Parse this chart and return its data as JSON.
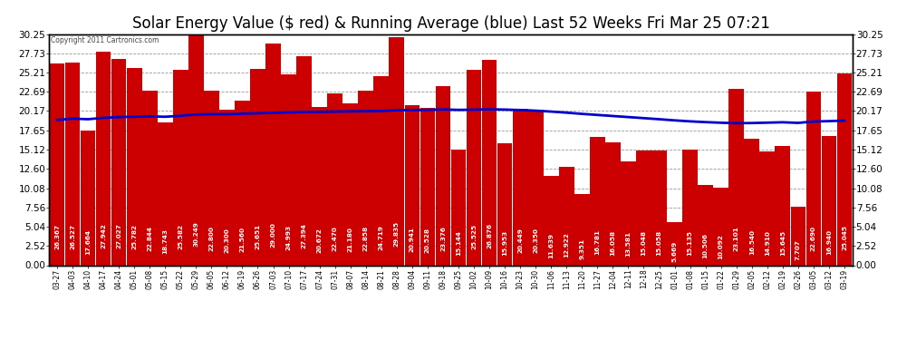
{
  "title": "Solar Energy Value ($ red) & Running Average (blue) Last 52 Weeks Fri Mar 25 07:21",
  "copyright": "Copyright 2011 Cartronics.com",
  "bar_color": "#cc0000",
  "line_color": "#0000cc",
  "background_color": "#ffffff",
  "plot_bg_color": "#ffffff",
  "grid_color": "#999999",
  "categories": [
    "03-27",
    "04-03",
    "04-10",
    "04-17",
    "04-24",
    "05-01",
    "05-08",
    "05-15",
    "05-22",
    "05-29",
    "06-05",
    "06-12",
    "06-19",
    "06-26",
    "07-03",
    "07-10",
    "07-17",
    "07-24",
    "07-31",
    "08-07",
    "08-14",
    "08-21",
    "08-28",
    "09-04",
    "09-11",
    "09-18",
    "09-25",
    "10-02",
    "10-09",
    "10-16",
    "10-23",
    "10-30",
    "11-06",
    "11-13",
    "11-20",
    "11-27",
    "12-04",
    "12-11",
    "12-18",
    "12-25",
    "01-01",
    "01-08",
    "01-15",
    "01-22",
    "01-29",
    "02-05",
    "02-12",
    "02-19",
    "02-26",
    "03-05",
    "03-12",
    "03-19"
  ],
  "bar_values": [
    26.367,
    26.527,
    17.664,
    27.942,
    27.027,
    25.782,
    22.844,
    18.743,
    25.582,
    30.249,
    22.8,
    20.3,
    21.56,
    25.651,
    29.0,
    24.993,
    27.394,
    20.672,
    22.47,
    21.18,
    22.858,
    24.719,
    29.835,
    20.941,
    20.528,
    23.376,
    15.144,
    25.525,
    26.876,
    15.953,
    20.449,
    20.35,
    11.639,
    12.922,
    9.351,
    16.781,
    16.058,
    13.581,
    15.048,
    15.058,
    5.669,
    15.135,
    10.506,
    10.092,
    23.101,
    16.54,
    14.91,
    15.645,
    7.707,
    22.69,
    16.94,
    25.045
  ],
  "running_avg": [
    19.0,
    19.18,
    19.1,
    19.28,
    19.38,
    19.43,
    19.48,
    19.42,
    19.55,
    19.72,
    19.76,
    19.76,
    19.82,
    19.88,
    19.95,
    20.0,
    20.06,
    20.06,
    20.1,
    20.13,
    20.15,
    20.18,
    20.28,
    20.3,
    20.32,
    20.38,
    20.32,
    20.35,
    20.4,
    20.36,
    20.3,
    20.22,
    20.1,
    19.96,
    19.8,
    19.66,
    19.52,
    19.38,
    19.24,
    19.1,
    18.95,
    18.82,
    18.72,
    18.64,
    18.58,
    18.6,
    18.65,
    18.7,
    18.62,
    18.8,
    18.85,
    18.92
  ],
  "yticks": [
    0.0,
    2.52,
    5.04,
    7.56,
    10.08,
    12.6,
    15.12,
    17.65,
    20.17,
    22.69,
    25.21,
    27.73,
    30.25
  ],
  "ymax": 30.25,
  "ymin": 0.0,
  "title_fontsize": 12,
  "label_fontsize": 5.5,
  "tick_fontsize": 7.5,
  "value_label_fontsize": 5.2
}
